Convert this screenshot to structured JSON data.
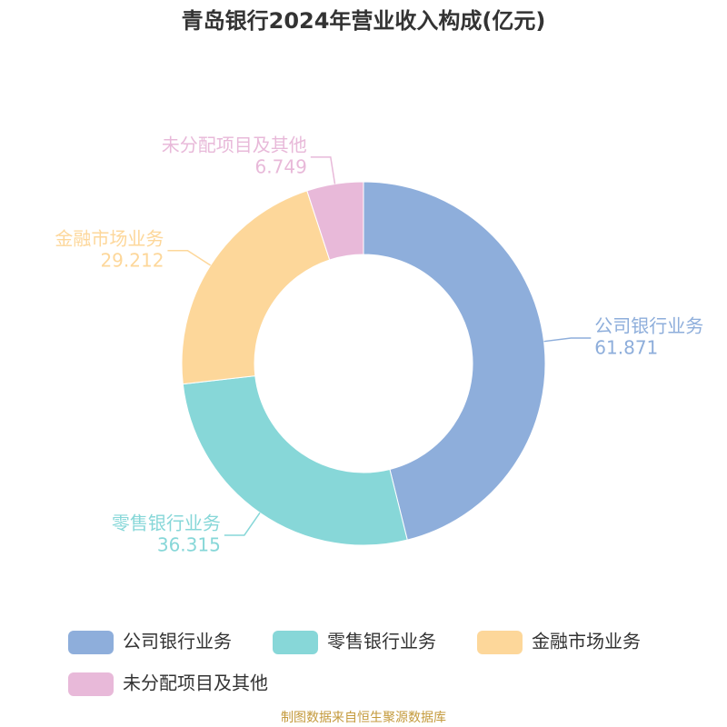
{
  "chart_data": {
    "type": "donut",
    "title": "青岛银行2024年营业收入构成(亿元)",
    "categories": [
      "公司银行业务",
      "零售银行业务",
      "金融市场业务",
      "未分配项目及其他"
    ],
    "values": [
      61.871,
      36.315,
      29.212,
      6.749
    ],
    "colors": [
      "#8eaedb",
      "#87d7d8",
      "#fdd79a",
      "#e8b9d9"
    ],
    "source": "制图数据来自恒生聚源数据库"
  }
}
